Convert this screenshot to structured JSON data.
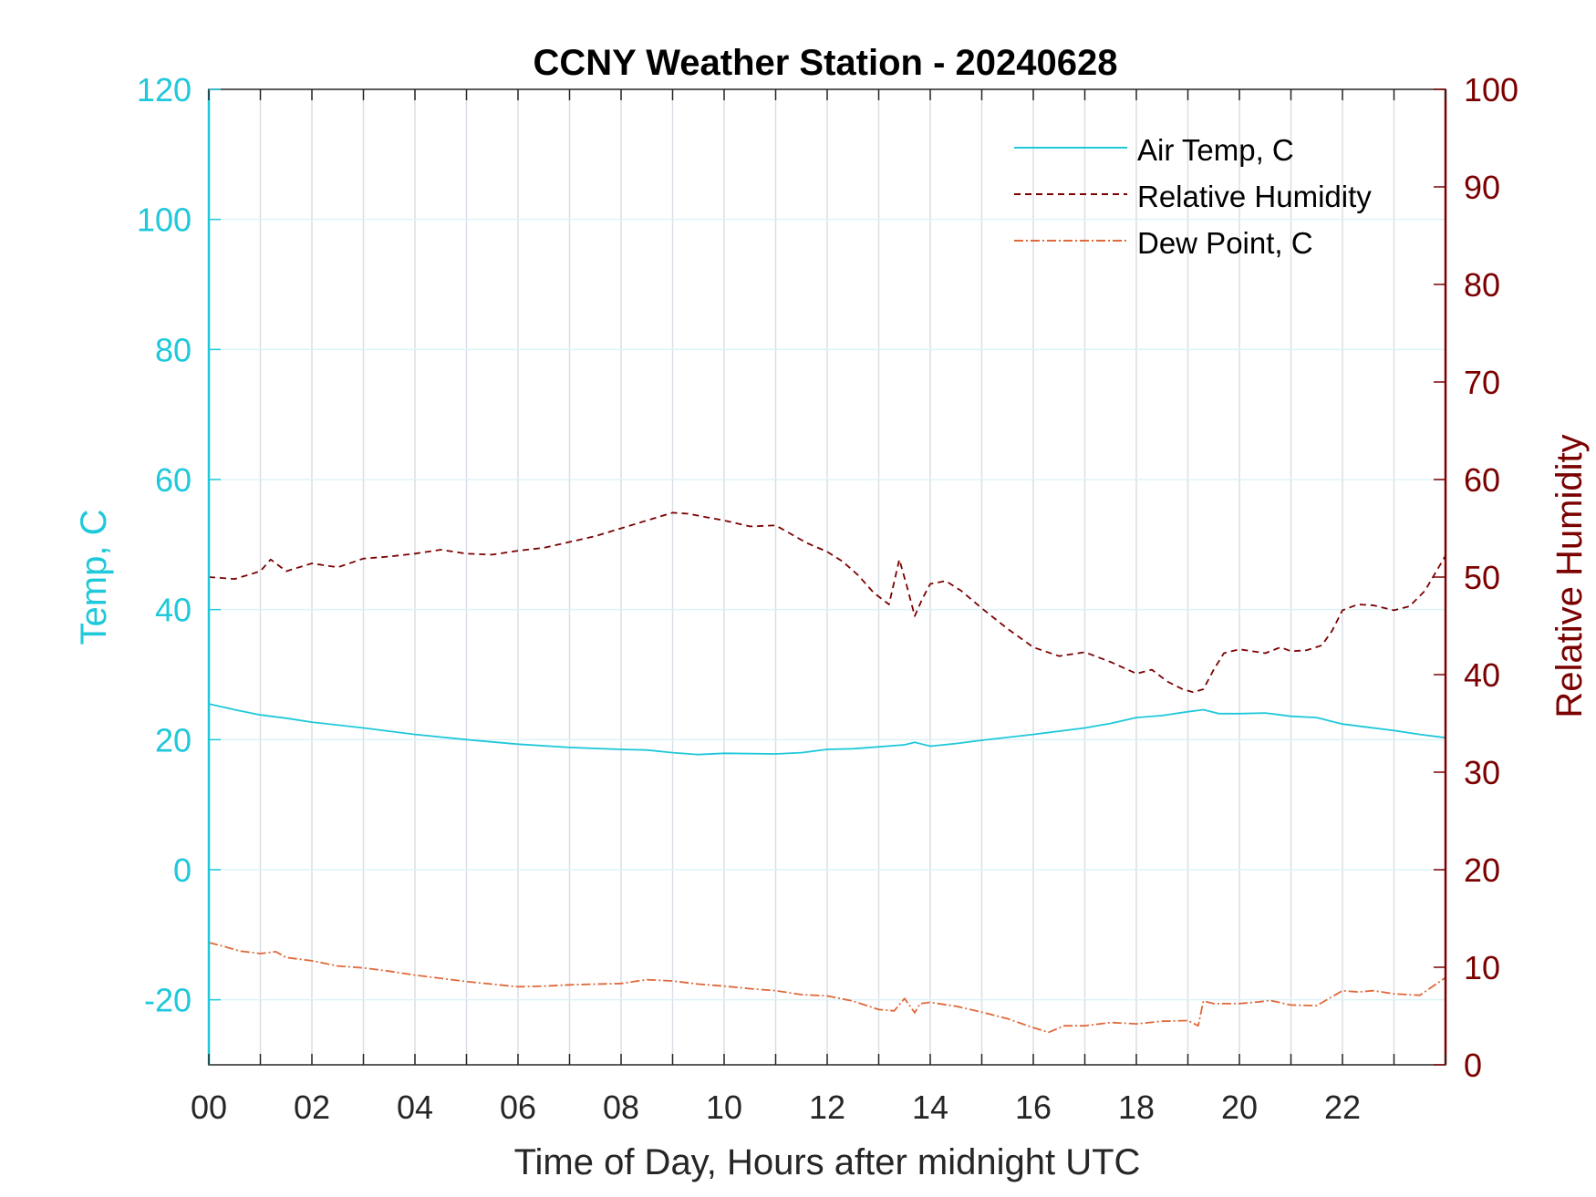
{
  "chart_data": {
    "type": "line",
    "title": "CCNY Weather Station - 20240628",
    "xlabel": "Time of Day, Hours after midnight UTC",
    "ylabel_left": "Temp, C",
    "ylabel_right": "Relative Humidity",
    "xlim": [
      0,
      24
    ],
    "ylim_left": [
      -30,
      120
    ],
    "ylim_right": [
      0,
      100
    ],
    "x_ticks": [
      0,
      2,
      4,
      6,
      8,
      10,
      12,
      14,
      16,
      18,
      20,
      22
    ],
    "x_tick_labels": [
      "00",
      "02",
      "04",
      "06",
      "08",
      "10",
      "12",
      "14",
      "16",
      "18",
      "20",
      "22"
    ],
    "y_left_ticks": [
      -20,
      0,
      20,
      40,
      60,
      80,
      100,
      120
    ],
    "y_left_tick_labels": [
      "-20",
      "0",
      "20",
      "40",
      "60",
      "80",
      "100",
      "120"
    ],
    "y_right_ticks": [
      0,
      10,
      20,
      30,
      40,
      50,
      60,
      70,
      80,
      90,
      100
    ],
    "y_right_tick_labels": [
      "0",
      "10",
      "20",
      "30",
      "40",
      "50",
      "60",
      "70",
      "80",
      "90",
      "100"
    ],
    "grid": true,
    "legend_position": "top-right",
    "colors": {
      "temp": "#1fc8da",
      "rh": "#7b0000",
      "dew": "#e0683a",
      "grid": "#d9dfe6"
    },
    "series": [
      {
        "name": "Air Temp, C",
        "axis": "left",
        "style": "solid",
        "color": "#1fc8da",
        "x": [
          0,
          0.5,
          1,
          1.5,
          2,
          3,
          4,
          5,
          6,
          7,
          8,
          8.5,
          9,
          9.5,
          10,
          11,
          11.5,
          12,
          12.5,
          13,
          13.5,
          13.7,
          14,
          14.5,
          15,
          16,
          17,
          17.5,
          18,
          18.5,
          19,
          19.3,
          19.6,
          20,
          20.5,
          21,
          21.5,
          22,
          22.5,
          23,
          23.5,
          24
        ],
        "y": [
          25.5,
          24.6,
          23.8,
          23.3,
          22.7,
          21.8,
          20.8,
          20.0,
          19.3,
          18.8,
          18.5,
          18.4,
          18.0,
          17.7,
          17.9,
          17.8,
          18.0,
          18.5,
          18.6,
          18.9,
          19.2,
          19.6,
          19.0,
          19.4,
          19.9,
          20.8,
          21.8,
          22.5,
          23.4,
          23.7,
          24.3,
          24.6,
          24.0,
          24.0,
          24.1,
          23.6,
          23.4,
          22.4,
          21.9,
          21.4,
          20.8,
          20.3
        ]
      },
      {
        "name": "Relative Humidity",
        "axis": "right",
        "style": "dashed",
        "color": "#7b0000",
        "x": [
          0,
          0.5,
          1,
          1.2,
          1.5,
          2,
          2.5,
          3,
          3.5,
          4,
          4.5,
          5,
          5.5,
          6,
          6.5,
          7,
          7.5,
          8,
          8.5,
          9,
          9.3,
          9.6,
          10,
          10.5,
          11,
          11.3,
          11.6,
          12,
          12.3,
          12.6,
          12.9,
          13.2,
          13.4,
          13.55,
          13.7,
          13.85,
          14,
          14.3,
          14.6,
          15,
          15.5,
          16,
          16.5,
          17,
          17.5,
          18,
          18.3,
          18.6,
          18.9,
          19.1,
          19.3,
          19.5,
          19.7,
          20,
          20.5,
          20.8,
          21,
          21.3,
          21.6,
          21.8,
          22,
          22.3,
          22.6,
          23,
          23.3,
          23.6,
          24
        ],
        "y": [
          50.0,
          49.8,
          50.6,
          51.8,
          50.6,
          51.4,
          51.0,
          51.9,
          52.1,
          52.4,
          52.8,
          52.4,
          52.3,
          52.7,
          53.0,
          53.6,
          54.2,
          55.0,
          55.8,
          56.6,
          56.5,
          56.2,
          55.8,
          55.2,
          55.3,
          54.4,
          53.5,
          52.6,
          51.6,
          50.2,
          48.4,
          47.2,
          51.8,
          49.0,
          46.0,
          47.8,
          49.3,
          49.6,
          48.6,
          46.8,
          44.7,
          42.8,
          41.9,
          42.3,
          41.3,
          40.1,
          40.5,
          39.3,
          38.5,
          38.2,
          38.5,
          40.5,
          42.2,
          42.6,
          42.2,
          42.8,
          42.4,
          42.5,
          43.0,
          44.5,
          46.6,
          47.2,
          47.1,
          46.6,
          47.0,
          48.6,
          52.2
        ]
      },
      {
        "name": "Dew Point, C",
        "axis": "left",
        "style": "dashdot",
        "color": "#e0683a",
        "x": [
          0,
          0.3,
          0.6,
          1,
          1.3,
          1.5,
          2,
          2.5,
          3,
          3.5,
          4,
          4.5,
          5,
          5.5,
          6,
          6.5,
          7,
          7.5,
          8,
          8.5,
          9,
          9.5,
          10,
          10.5,
          11,
          11.5,
          12,
          12.5,
          13,
          13.3,
          13.5,
          13.7,
          13.8,
          14,
          14.5,
          15,
          15.5,
          16,
          16.3,
          16.6,
          17,
          17.5,
          18,
          18.5,
          19,
          19.2,
          19.3,
          19.5,
          20,
          20.4,
          20.6,
          21,
          21.5,
          22,
          22.3,
          22.6,
          23,
          23.5,
          24
        ],
        "y": [
          -11.2,
          -11.8,
          -12.5,
          -12.9,
          -12.6,
          -13.5,
          -14.0,
          -14.8,
          -15.1,
          -15.6,
          -16.2,
          -16.7,
          -17.2,
          -17.6,
          -18.0,
          -17.9,
          -17.7,
          -17.6,
          -17.5,
          -16.9,
          -17.1,
          -17.6,
          -17.9,
          -18.3,
          -18.6,
          -19.2,
          -19.4,
          -20.2,
          -21.5,
          -21.7,
          -19.8,
          -22.0,
          -20.6,
          -20.4,
          -21.0,
          -21.9,
          -22.9,
          -24.3,
          -25.0,
          -24.0,
          -24.0,
          -23.5,
          -23.7,
          -23.3,
          -23.2,
          -24.0,
          -20.2,
          -20.6,
          -20.6,
          -20.3,
          -20.1,
          -20.8,
          -20.9,
          -18.6,
          -18.8,
          -18.6,
          -19.1,
          -19.3,
          -16.6
        ]
      }
    ]
  }
}
